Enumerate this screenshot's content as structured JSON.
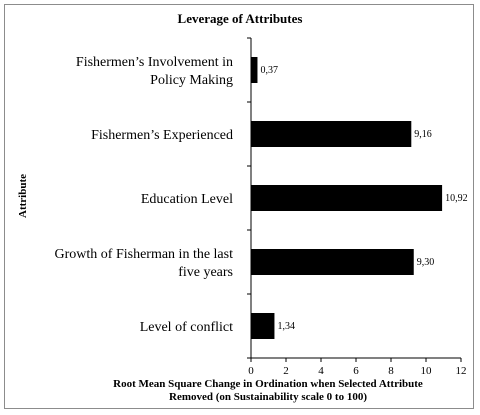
{
  "chart_data": {
    "type": "bar",
    "orientation": "horizontal",
    "title": "Leverage of Attributes",
    "ylabel": "Attribute",
    "xlabel_lines": [
      "Root Mean Square Change in Ordination when Selected Attribute",
      "Removed (on Sustainability scale 0 to 100)"
    ],
    "xlim": [
      0,
      12
    ],
    "xticks": [
      "0",
      "2",
      "4",
      "6",
      "8",
      "10",
      "12"
    ],
    "categories": [
      [
        "Fishermen’s Involvement in",
        "Policy Making"
      ],
      [
        "Fishermen’s Experienced"
      ],
      [
        "Education Level"
      ],
      [
        "Growth of Fisherman in the last",
        "five years"
      ],
      [
        "Level of conflict"
      ]
    ],
    "values": [
      0.37,
      9.16,
      10.92,
      9.3,
      1.34
    ],
    "value_labels": [
      "0,37",
      "9,16",
      "10,92",
      "9,30",
      "1,34"
    ],
    "bar_color": "#000000",
    "grid": false
  }
}
